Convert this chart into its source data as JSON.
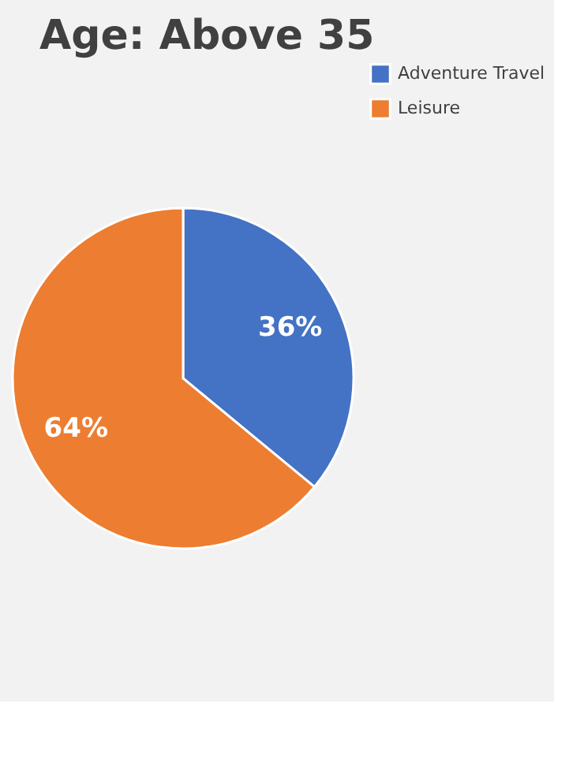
{
  "chart_data": {
    "type": "pie",
    "title": "Age: Above 35",
    "categories": [
      "Adventure Travel",
      "Leisure"
    ],
    "values": [
      36,
      64
    ],
    "colors": [
      "#4472c4",
      "#ed7d31"
    ],
    "value_labels": [
      "36%",
      "64%"
    ],
    "legend": "right"
  }
}
